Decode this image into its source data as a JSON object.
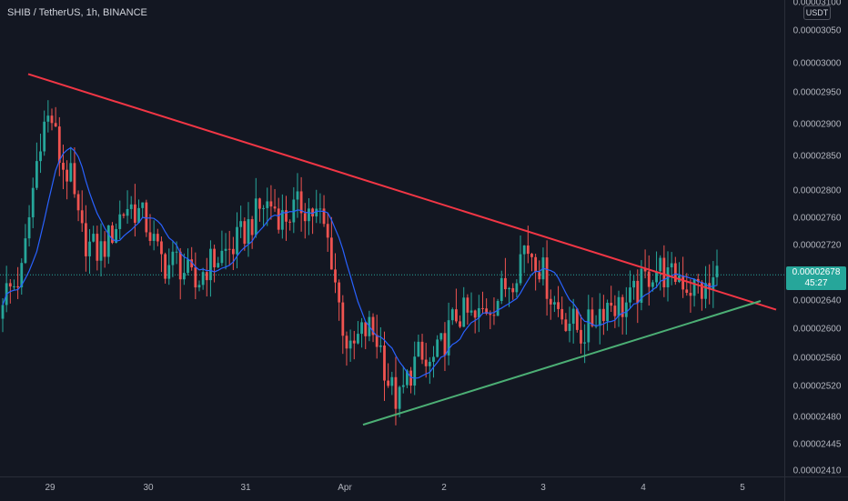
{
  "header": {
    "symbol_title": "SHIB / TetherUS, 1h, BINANCE"
  },
  "price_axis": {
    "currency_badge": "USDT",
    "ticks": [
      "0.00003100",
      "0.00003050",
      "0.00003000",
      "0.00002950",
      "0.00002900",
      "0.00002850",
      "0.00002800",
      "0.00002760",
      "0.00002720",
      "0.00002678",
      "0.00002640",
      "0.00002600",
      "0.00002560",
      "0.00002520",
      "0.00002480",
      "0.00002445",
      "0.00002410"
    ],
    "last_price": "0.00002678",
    "countdown": "45:27"
  },
  "colors": {
    "background": "#131722",
    "up_candle": "#26a69a",
    "down_candle": "#ef5350",
    "moving_average": "#2962ff",
    "resistance_line": "#f23645",
    "support_line": "#4caf75",
    "last_price_line": "#26a69a"
  },
  "chart_data": {
    "type": "candlestick",
    "title": "SHIB / TetherUS, 1h, BINANCE",
    "x_tick_labels": [
      "29",
      "30",
      "31",
      "Apr",
      "2",
      "3",
      "4",
      "5"
    ],
    "y_tick_labels": [
      "0.00003100",
      "0.00003050",
      "0.00003000",
      "0.00002950",
      "0.00002900",
      "0.00002850",
      "0.00002800",
      "0.00002760",
      "0.00002720",
      "0.00002640",
      "0.00002600",
      "0.00002560",
      "0.00002520",
      "0.00002480",
      "0.00002445",
      "0.00002410"
    ],
    "last_price": 2.678e-05,
    "series": [
      {
        "type": "candlestick",
        "close_path": [
          2.65e-05,
          2.66e-05,
          2.68e-05,
          2.79e-05,
          2.89e-05,
          2.91e-05,
          2.84e-05,
          2.82e-05,
          2.74e-05,
          2.72e-05,
          2.71e-05,
          2.73e-05,
          2.76e-05,
          2.78e-05,
          2.77e-05,
          2.75e-05,
          2.71e-05,
          2.69e-05,
          2.7e-05,
          2.68e-05,
          2.66e-05,
          2.69e-05,
          2.7e-05,
          2.71e-05,
          2.72e-05,
          2.74e-05,
          2.76e-05,
          2.78e-05,
          2.78e-05,
          2.76e-05,
          2.77e-05,
          2.78e-05,
          2.77e-05,
          2.76e-05,
          2.71e-05,
          2.62e-05,
          2.56e-05,
          2.59e-05,
          2.6e-05,
          2.58e-05,
          2.52e-05,
          2.49e-05,
          2.53e-05,
          2.56e-05,
          2.54e-05,
          2.56e-05,
          2.59e-05,
          2.62e-05,
          2.62e-05,
          2.61e-05,
          2.63e-05,
          2.64e-05,
          2.66e-05,
          2.68e-05,
          2.72e-05,
          2.71e-05,
          2.68e-05,
          2.64e-05,
          2.62e-05,
          2.61e-05,
          2.59e-05,
          2.61e-05,
          2.63e-05,
          2.64e-05,
          2.63e-05,
          2.64e-05,
          2.66e-05,
          2.68e-05,
          2.69e-05,
          2.67e-05,
          2.68e-05,
          2.66e-05,
          2.66e-05,
          2.65e-05,
          2.68e-05
        ]
      },
      {
        "type": "line",
        "name": "",
        "note_color": "moving_average"
      }
    ],
    "trendlines": [
      {
        "role": "resistance",
        "from": [
          "28 Mar",
          2.97e-05
        ],
        "to": [
          "5 Apr",
          2.63e-05
        ]
      },
      {
        "role": "support",
        "from": [
          "1 Apr",
          2.46e-05
        ],
        "to": [
          "5 Apr",
          2.64e-05
        ]
      }
    ]
  }
}
